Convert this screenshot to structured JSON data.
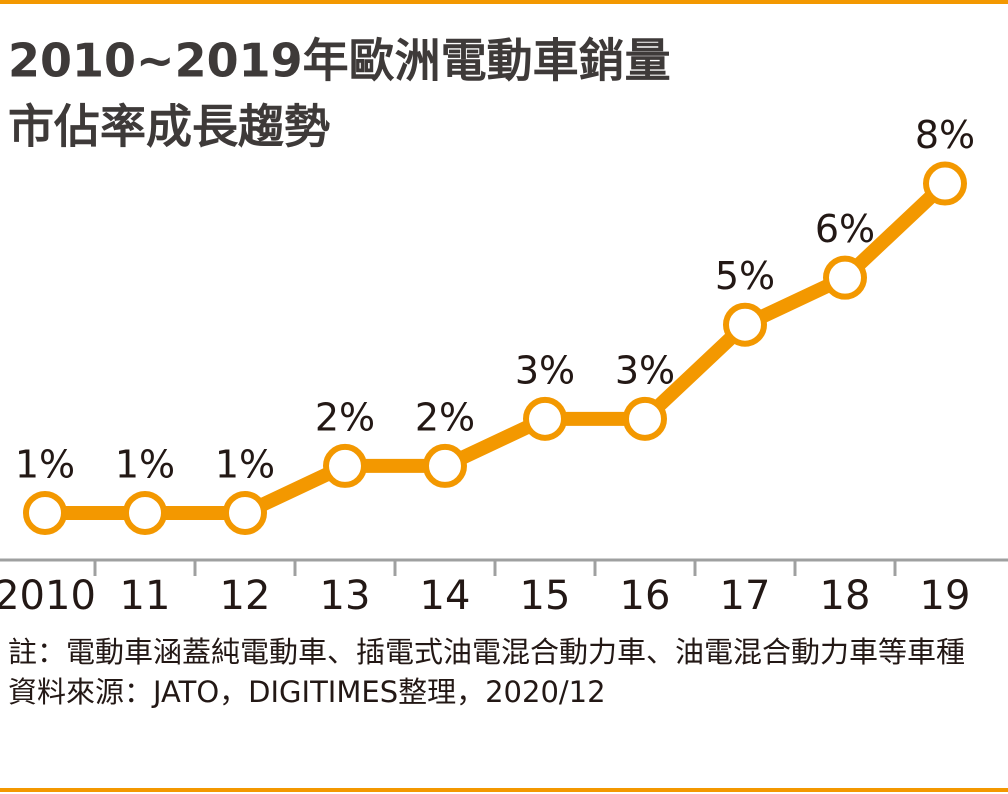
{
  "chart_data": {
    "type": "line",
    "title": [
      "2010~2019年歐洲電動車銷量",
      "市佔率成長趨勢"
    ],
    "categories": [
      "2010",
      "11",
      "12",
      "13",
      "14",
      "15",
      "16",
      "17",
      "18",
      "19"
    ],
    "values": [
      1,
      1,
      1,
      2,
      2,
      3,
      3,
      5,
      6,
      8
    ],
    "value_labels": [
      "1%",
      "1%",
      "1%",
      "2%",
      "2%",
      "3%",
      "3%",
      "5%",
      "6%",
      "8%"
    ],
    "color": "#f39800",
    "ylim": [
      0,
      8.5
    ],
    "note_label": "註：",
    "note": "電動車涵蓋純電動車、插電式油電混合動力車、油電混合動力車等車種",
    "source": "資料來源：JATO，DIGITIMES整理，2020/12"
  }
}
